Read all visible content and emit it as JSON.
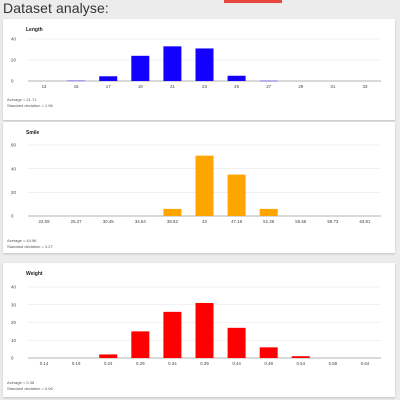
{
  "page": {
    "title": "Dataset analyse:",
    "accent_color": "#e8473f"
  },
  "charts": [
    {
      "name": "Length",
      "color": "#1400ff",
      "average_text": "Average = 21.71",
      "stddev_text": "Standard deviation = 1.96"
    },
    {
      "name": "Smile",
      "color": "#ffa500",
      "average_text": "Average = 44.96",
      "stddev_text": "Standard deviation = 3.27"
    },
    {
      "name": "Weight",
      "color": "#ff0000",
      "average_text": "Average = 0.38",
      "stddev_text": "Standard deviation = 0.06"
    }
  ],
  "chart_data": [
    {
      "type": "bar",
      "title": "Length",
      "categories": [
        "13",
        "15",
        "17",
        "19",
        "21",
        "23",
        "25",
        "27",
        "29",
        "31",
        "33"
      ],
      "values": [
        0,
        0.3,
        4.5,
        24,
        33,
        31,
        5,
        0.2,
        0,
        0,
        0
      ],
      "ylim": [
        0,
        40
      ],
      "yticks": [
        "0",
        "20",
        "40"
      ],
      "ytick_values": [
        0,
        20,
        40
      ],
      "grid": true,
      "color": "#1400ff"
    },
    {
      "type": "bar",
      "title": "Smile",
      "categories": [
        "22.09",
        "26.27",
        "30.45",
        "34.64",
        "38.82",
        "43",
        "47.18",
        "51.36",
        "55.55",
        "59.73",
        "63.91"
      ],
      "values": [
        0,
        0,
        0,
        0,
        6,
        51,
        35,
        6,
        0,
        0,
        0
      ],
      "ylim": [
        0,
        60
      ],
      "yticks": [
        "0",
        "20",
        "40",
        "60"
      ],
      "ytick_values": [
        0,
        20,
        40,
        60
      ],
      "grid": true,
      "color": "#ffa500"
    },
    {
      "type": "bar",
      "title": "Weight",
      "categories": [
        "0.14",
        "0.19",
        "0.24",
        "0.29",
        "0.34",
        "0.39",
        "0.44",
        "0.49",
        "0.54",
        "0.59",
        "0.64"
      ],
      "values": [
        0,
        0,
        2,
        15,
        26,
        31,
        17,
        6,
        1,
        0,
        0
      ],
      "ylim": [
        0,
        40
      ],
      "yticks": [
        "0",
        "10",
        "20",
        "30",
        "40"
      ],
      "ytick_values": [
        0,
        10,
        20,
        30,
        40
      ],
      "grid": true,
      "color": "#ff0000"
    }
  ]
}
